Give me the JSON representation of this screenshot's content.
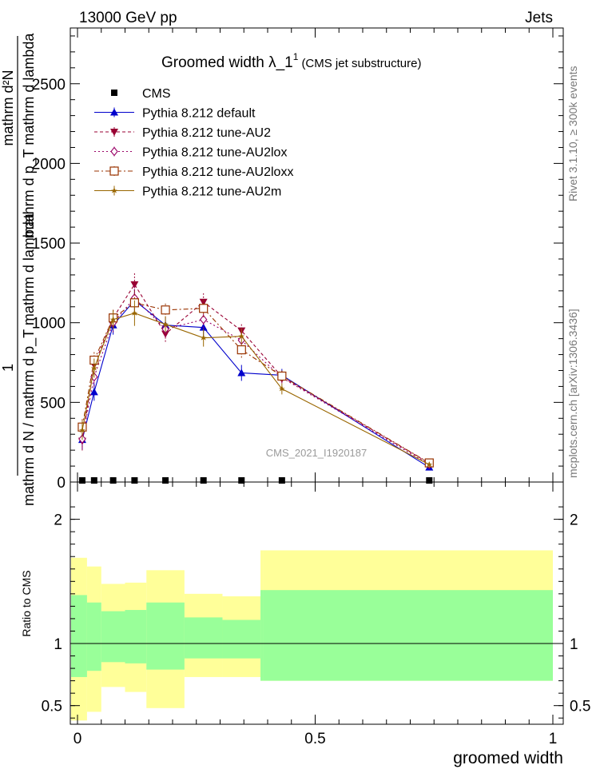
{
  "header": {
    "left": "13000 GeV pp",
    "right": "Jets",
    "title_main": "Groomed width  λ_1",
    "title_sup": "1",
    "title_sub": "(CMS jet substructure)",
    "right_text_top": "Rivet 3.1.10, ≥ 300k events",
    "right_text_bottom": "mcplots.cern.ch [arXiv:1306.3436]",
    "watermark": "CMS_2021_I1920187"
  },
  "chart_data": [
    {
      "type": "line",
      "panel": "main",
      "ylabel_top": "1",
      "ylabel_main": "mathrm d N / mathrm d p_T mathrm d lambda",
      "ylabel_sup": "mathrm d²N",
      "ylabel_sub": "mathrm d p_T mathrm d lambda",
      "ylim": [
        0,
        2850
      ],
      "xlim": [
        -0.015,
        1.02
      ],
      "y_ticks": [
        0,
        500,
        1000,
        1500,
        2000,
        2500
      ],
      "y_tick_labels": [
        "0",
        "500",
        "1000",
        "1500",
        "2000",
        "2500"
      ],
      "x": [
        0.01,
        0.035,
        0.075,
        0.12,
        0.185,
        0.265,
        0.345,
        0.43,
        0.74
      ],
      "series": [
        {
          "name": "CMS",
          "color": "#000000",
          "marker": "square",
          "values": [
            0,
            0,
            0,
            0,
            0,
            0,
            0,
            0,
            0
          ]
        },
        {
          "name": "Pythia 8.212 default",
          "color": "#0000cc",
          "marker": "triangle-up",
          "dash": "",
          "values": [
            265,
            565,
            985,
            1140,
            985,
            970,
            685,
            670,
            92
          ],
          "errors": [
            60,
            55,
            60,
            70,
            45,
            55,
            50,
            40,
            12
          ]
        },
        {
          "name": "Pythia 8.212 tune-AU2",
          "color": "#990033",
          "marker": "triangle-down",
          "dash": "4,3",
          "values": [
            258,
            735,
            1030,
            1240,
            930,
            1130,
            950,
            660,
            118
          ],
          "errors": [
            60,
            60,
            60,
            80,
            50,
            55,
            50,
            35,
            12
          ]
        },
        {
          "name": "Pythia 8.212 tune-AU2lox",
          "color": "#990066",
          "marker": "diamond",
          "dash": "2,3",
          "values": [
            270,
            660,
            1000,
            1155,
            960,
            1020,
            890,
            655,
            110
          ],
          "errors": [
            60,
            60,
            60,
            75,
            50,
            55,
            50,
            35,
            12
          ]
        },
        {
          "name": "Pythia 8.212 tune-AU2loxx",
          "color": "#993300",
          "marker": "open-square",
          "dash": "6,3,2,3",
          "values": [
            345,
            765,
            1030,
            1125,
            1080,
            1090,
            830,
            665,
            120
          ],
          "errors": [
            60,
            60,
            60,
            75,
            50,
            55,
            50,
            35,
            12
          ]
        },
        {
          "name": "Pythia 8.212 tune-AU2m",
          "color": "#996600",
          "marker": "star",
          "dash": "",
          "values": [
            325,
            715,
            1020,
            1060,
            990,
            905,
            915,
            585,
            110
          ],
          "errors": [
            60,
            60,
            60,
            80,
            50,
            55,
            50,
            35,
            12
          ]
        }
      ]
    },
    {
      "type": "area",
      "panel": "ratio",
      "ylabel": "Ratio to CMS",
      "ylim": [
        0.35,
        2.3
      ],
      "y_ticks": [
        0.5,
        1,
        2
      ],
      "y_tick_labels": [
        "0.5",
        "1",
        "2"
      ],
      "x_ticks": [
        0,
        0.5,
        1
      ],
      "x_tick_labels": [
        "0",
        "0.5",
        "1"
      ],
      "xlabel": "groomed width",
      "bin_edges": [
        0,
        0.02,
        0.05,
        0.1,
        0.145,
        0.225,
        0.305,
        0.385,
        0.39,
        1.0
      ],
      "yellow_band": {
        "color": "#ffff99",
        "low": [
          0.38,
          0.45,
          0.65,
          0.61,
          0.48,
          0.73,
          0.73,
          0.7,
          0.7
        ],
        "high": [
          1.69,
          1.62,
          1.48,
          1.49,
          1.59,
          1.4,
          1.38,
          1.75,
          1.75
        ]
      },
      "green_band": {
        "color": "#99ff99",
        "low": [
          0.73,
          0.78,
          0.85,
          0.84,
          0.79,
          0.88,
          0.88,
          0.7,
          0.7
        ],
        "high": [
          1.39,
          1.33,
          1.26,
          1.27,
          1.33,
          1.21,
          1.19,
          1.43,
          1.43
        ]
      },
      "reference_line": 1
    }
  ]
}
